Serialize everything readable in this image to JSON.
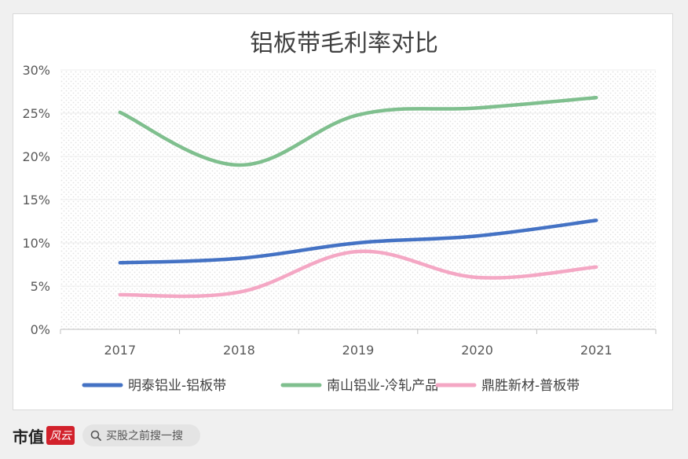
{
  "chart_data": {
    "type": "line",
    "title": "铝板带毛利率对比",
    "categories": [
      "2017",
      "2018",
      "2019",
      "2020",
      "2021"
    ],
    "y_ticks": [
      "0%",
      "5%",
      "10%",
      "15%",
      "20%",
      "25%",
      "30%"
    ],
    "ylim": [
      0,
      30
    ],
    "grid": true,
    "legend_position": "bottom",
    "series": [
      {
        "name": "明泰铝业-铝板带",
        "color": "#4472c4",
        "values": [
          7.7,
          8.2,
          10.0,
          10.8,
          12.6
        ]
      },
      {
        "name": "南山铝业-冷轧产品",
        "color": "#7fbf8e",
        "values": [
          25.1,
          19.0,
          24.8,
          25.6,
          26.8
        ]
      },
      {
        "name": "鼎胜新材-普板带",
        "color": "#f4a7c4",
        "values": [
          4.0,
          4.3,
          9.0,
          6.0,
          7.2
        ]
      }
    ]
  },
  "footer": {
    "brand": "市值",
    "brand_mark": "风云",
    "search_text": "买股之前搜一搜",
    "search_icon": "search-icon"
  }
}
